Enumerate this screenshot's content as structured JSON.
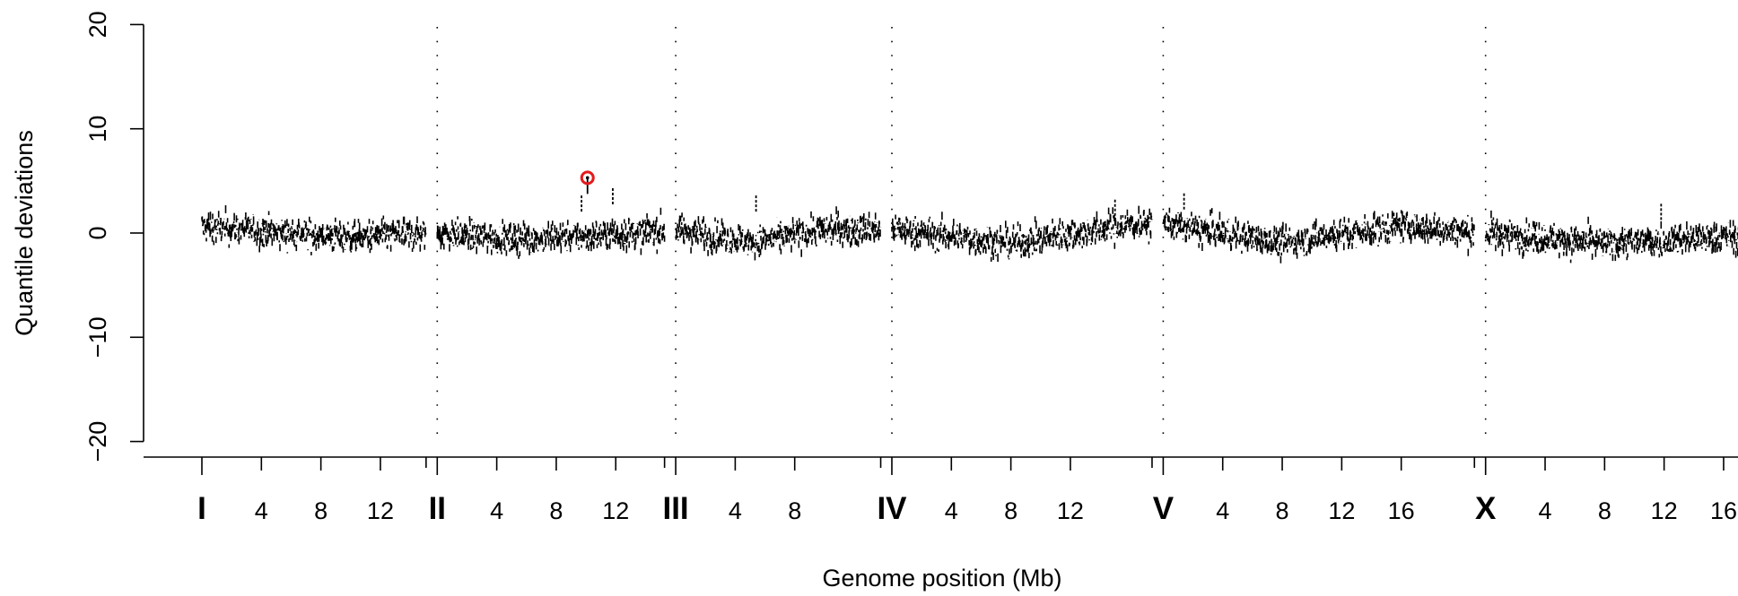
{
  "chart_data": {
    "type": "scatter",
    "xlabel": "Genome position (Mb)",
    "ylabel": "Quantile deviations",
    "ylim": [
      -20,
      20
    ],
    "y_ticks": [
      -20,
      -10,
      0,
      10,
      20
    ],
    "y_tick_labels": [
      "−20",
      "−10",
      "0",
      "10",
      "20"
    ],
    "grid": "dotted vertical lines at chromosome boundaries",
    "chromosomes": [
      {
        "name": "I",
        "length_mb": 15.07,
        "ticks": [
          4,
          8,
          12
        ]
      },
      {
        "name": "II",
        "length_mb": 15.28,
        "ticks": [
          4,
          8,
          12
        ]
      },
      {
        "name": "III",
        "length_mb": 13.78,
        "ticks": [
          4,
          8
        ]
      },
      {
        "name": "IV",
        "length_mb": 17.49,
        "ticks": [
          4,
          8,
          12
        ]
      },
      {
        "name": "V",
        "length_mb": 20.92,
        "ticks": [
          4,
          8,
          12,
          16
        ]
      },
      {
        "name": "X",
        "length_mb": 17.72,
        "ticks": [
          4,
          8,
          12,
          16
        ]
      }
    ],
    "series": [
      {
        "color": "#000000",
        "description_points": "dense noisy band of short vertical segments, typical range about -2.5 to 3",
        "trend": [
          {
            "chrom": "I",
            "pos_mb": 0,
            "y": 0.6
          },
          {
            "chrom": "I",
            "pos_mb": 5,
            "y": 0.1
          },
          {
            "chrom": "I",
            "pos_mb": 10,
            "y": -0.4
          },
          {
            "chrom": "II",
            "pos_mb": 0,
            "y": 0.0
          },
          {
            "chrom": "II",
            "pos_mb": 5,
            "y": -0.6
          },
          {
            "chrom": "II",
            "pos_mb": 10,
            "y": -0.3
          },
          {
            "chrom": "III",
            "pos_mb": 0,
            "y": 0.3
          },
          {
            "chrom": "III",
            "pos_mb": 5,
            "y": -0.9
          },
          {
            "chrom": "III",
            "pos_mb": 10,
            "y": 0.3
          },
          {
            "chrom": "IV",
            "pos_mb": 0,
            "y": 0.4
          },
          {
            "chrom": "IV",
            "pos_mb": 8,
            "y": -1.0
          },
          {
            "chrom": "IV",
            "pos_mb": 16,
            "y": 0.8
          },
          {
            "chrom": "V",
            "pos_mb": 0,
            "y": 0.9
          },
          {
            "chrom": "V",
            "pos_mb": 8,
            "y": -0.9
          },
          {
            "chrom": "V",
            "pos_mb": 16,
            "y": 0.7
          },
          {
            "chrom": "X",
            "pos_mb": 0,
            "y": 0.0
          },
          {
            "chrom": "X",
            "pos_mb": 8,
            "y": -1.0
          },
          {
            "chrom": "X",
            "pos_mb": 16,
            "y": -0.4
          },
          {
            "chrom": "X",
            "pos_mb": 17.7,
            "y": -0.4
          }
        ]
      }
    ],
    "highlight": {
      "chrom": "II",
      "pos_mb": 10.1,
      "y": 5.3,
      "color": "#e41a1c"
    },
    "spikes": [
      {
        "chrom": "II",
        "pos_mb": 9.7,
        "y": 3.6
      },
      {
        "chrom": "II",
        "pos_mb": 11.8,
        "y": 4.3
      },
      {
        "chrom": "III",
        "pos_mb": 5.4,
        "y": 3.6
      },
      {
        "chrom": "IV",
        "pos_mb": 15.0,
        "y": 3.2
      },
      {
        "chrom": "V",
        "pos_mb": 1.4,
        "y": 3.8
      },
      {
        "chrom": "X",
        "pos_mb": 11.8,
        "y": 2.8
      }
    ]
  }
}
